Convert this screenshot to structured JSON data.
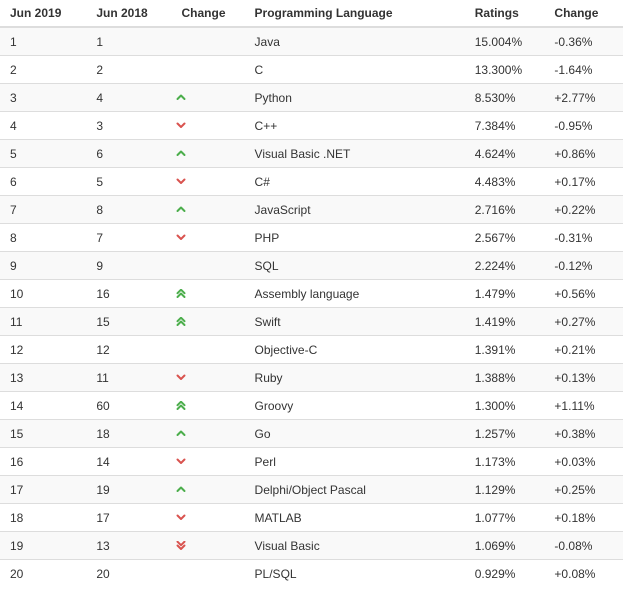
{
  "headers": [
    "Jun 2019",
    "Jun 2018",
    "Change",
    "Programming Language",
    "Ratings",
    "Change"
  ],
  "arrow_colors": {
    "up": "#4cae4c",
    "down": "#d9534f"
  },
  "rows": [
    {
      "jun2019": "1",
      "jun2018": "1",
      "trend": "none",
      "language": "Java",
      "ratings": "15.004%",
      "change": "-0.36%"
    },
    {
      "jun2019": "2",
      "jun2018": "2",
      "trend": "none",
      "language": "C",
      "ratings": "13.300%",
      "change": "-1.64%"
    },
    {
      "jun2019": "3",
      "jun2018": "4",
      "trend": "up",
      "language": "Python",
      "ratings": "8.530%",
      "change": "+2.77%"
    },
    {
      "jun2019": "4",
      "jun2018": "3",
      "trend": "down",
      "language": "C++",
      "ratings": "7.384%",
      "change": "-0.95%"
    },
    {
      "jun2019": "5",
      "jun2018": "6",
      "trend": "up",
      "language": "Visual Basic .NET",
      "ratings": "4.624%",
      "change": "+0.86%"
    },
    {
      "jun2019": "6",
      "jun2018": "5",
      "trend": "down",
      "language": "C#",
      "ratings": "4.483%",
      "change": "+0.17%"
    },
    {
      "jun2019": "7",
      "jun2018": "8",
      "trend": "up",
      "language": "JavaScript",
      "ratings": "2.716%",
      "change": "+0.22%"
    },
    {
      "jun2019": "8",
      "jun2018": "7",
      "trend": "down",
      "language": "PHP",
      "ratings": "2.567%",
      "change": "-0.31%"
    },
    {
      "jun2019": "9",
      "jun2018": "9",
      "trend": "none",
      "language": "SQL",
      "ratings": "2.224%",
      "change": "-0.12%"
    },
    {
      "jun2019": "10",
      "jun2018": "16",
      "trend": "up-double",
      "language": "Assembly language",
      "ratings": "1.479%",
      "change": "+0.56%"
    },
    {
      "jun2019": "11",
      "jun2018": "15",
      "trend": "up-double",
      "language": "Swift",
      "ratings": "1.419%",
      "change": "+0.27%"
    },
    {
      "jun2019": "12",
      "jun2018": "12",
      "trend": "none",
      "language": "Objective-C",
      "ratings": "1.391%",
      "change": "+0.21%"
    },
    {
      "jun2019": "13",
      "jun2018": "11",
      "trend": "down",
      "language": "Ruby",
      "ratings": "1.388%",
      "change": "+0.13%"
    },
    {
      "jun2019": "14",
      "jun2018": "60",
      "trend": "up-double",
      "language": "Groovy",
      "ratings": "1.300%",
      "change": "+1.11%"
    },
    {
      "jun2019": "15",
      "jun2018": "18",
      "trend": "up",
      "language": "Go",
      "ratings": "1.257%",
      "change": "+0.38%"
    },
    {
      "jun2019": "16",
      "jun2018": "14",
      "trend": "down",
      "language": "Perl",
      "ratings": "1.173%",
      "change": "+0.03%"
    },
    {
      "jun2019": "17",
      "jun2018": "19",
      "trend": "up",
      "language": "Delphi/Object Pascal",
      "ratings": "1.129%",
      "change": "+0.25%"
    },
    {
      "jun2019": "18",
      "jun2018": "17",
      "trend": "down",
      "language": "MATLAB",
      "ratings": "1.077%",
      "change": "+0.18%"
    },
    {
      "jun2019": "19",
      "jun2018": "13",
      "trend": "down-double",
      "language": "Visual Basic",
      "ratings": "1.069%",
      "change": "-0.08%"
    },
    {
      "jun2019": "20",
      "jun2018": "20",
      "trend": "none",
      "language": "PL/SQL",
      "ratings": "0.929%",
      "change": "+0.08%"
    }
  ]
}
